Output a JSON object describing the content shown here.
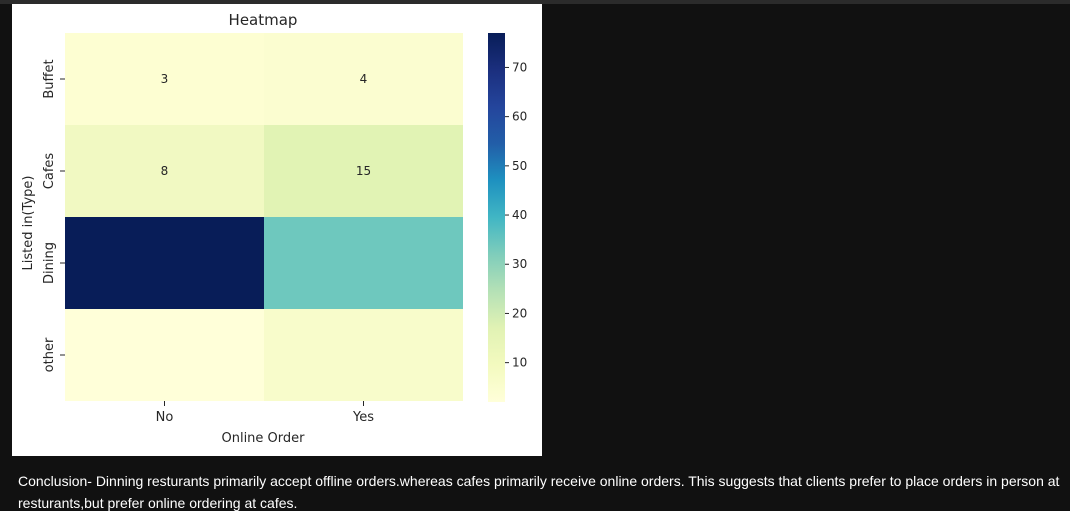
{
  "chart_data": {
    "type": "heatmap",
    "title": "Heatmap",
    "xlabel": "Online Order",
    "ylabel": "Listed in(Type)",
    "x_categories": [
      "No",
      "Yes"
    ],
    "y_categories": [
      "Buffet",
      "Cafes",
      "Dining",
      "other"
    ],
    "values": [
      [
        3,
        4
      ],
      [
        8,
        15
      ],
      [
        77,
        33
      ],
      [
        2,
        6
      ]
    ],
    "annotations": [
      [
        "3",
        "4"
      ],
      [
        "8",
        "15"
      ],
      [
        "",
        ""
      ],
      [
        "",
        ""
      ]
    ],
    "colormap": "YlGnBu",
    "color_range": [
      2,
      77
    ],
    "colorbar_ticks": [
      10,
      20,
      30,
      40,
      50,
      60,
      70
    ],
    "colors": {
      "Buffet|No": "#fdfed2",
      "Buffet|Yes": "#fbfdd0",
      "Cafes|No": "#f1f9c2",
      "Cafes|Yes": "#e1f3b4",
      "Dining|No": "#081d58",
      "Dining|Yes": "#6ec8be",
      "other|No": "#ffffd9",
      "other|Yes": "#f8fccb"
    },
    "grid": false,
    "legend": "colorbar-right"
  },
  "conclusion": "Conclusion- Dinning resturants primarily accept offline orders.whereas cafes primarily receive online orders. This suggests that clients prefer to place orders in person at resturants,but prefer online ordering at cafes."
}
